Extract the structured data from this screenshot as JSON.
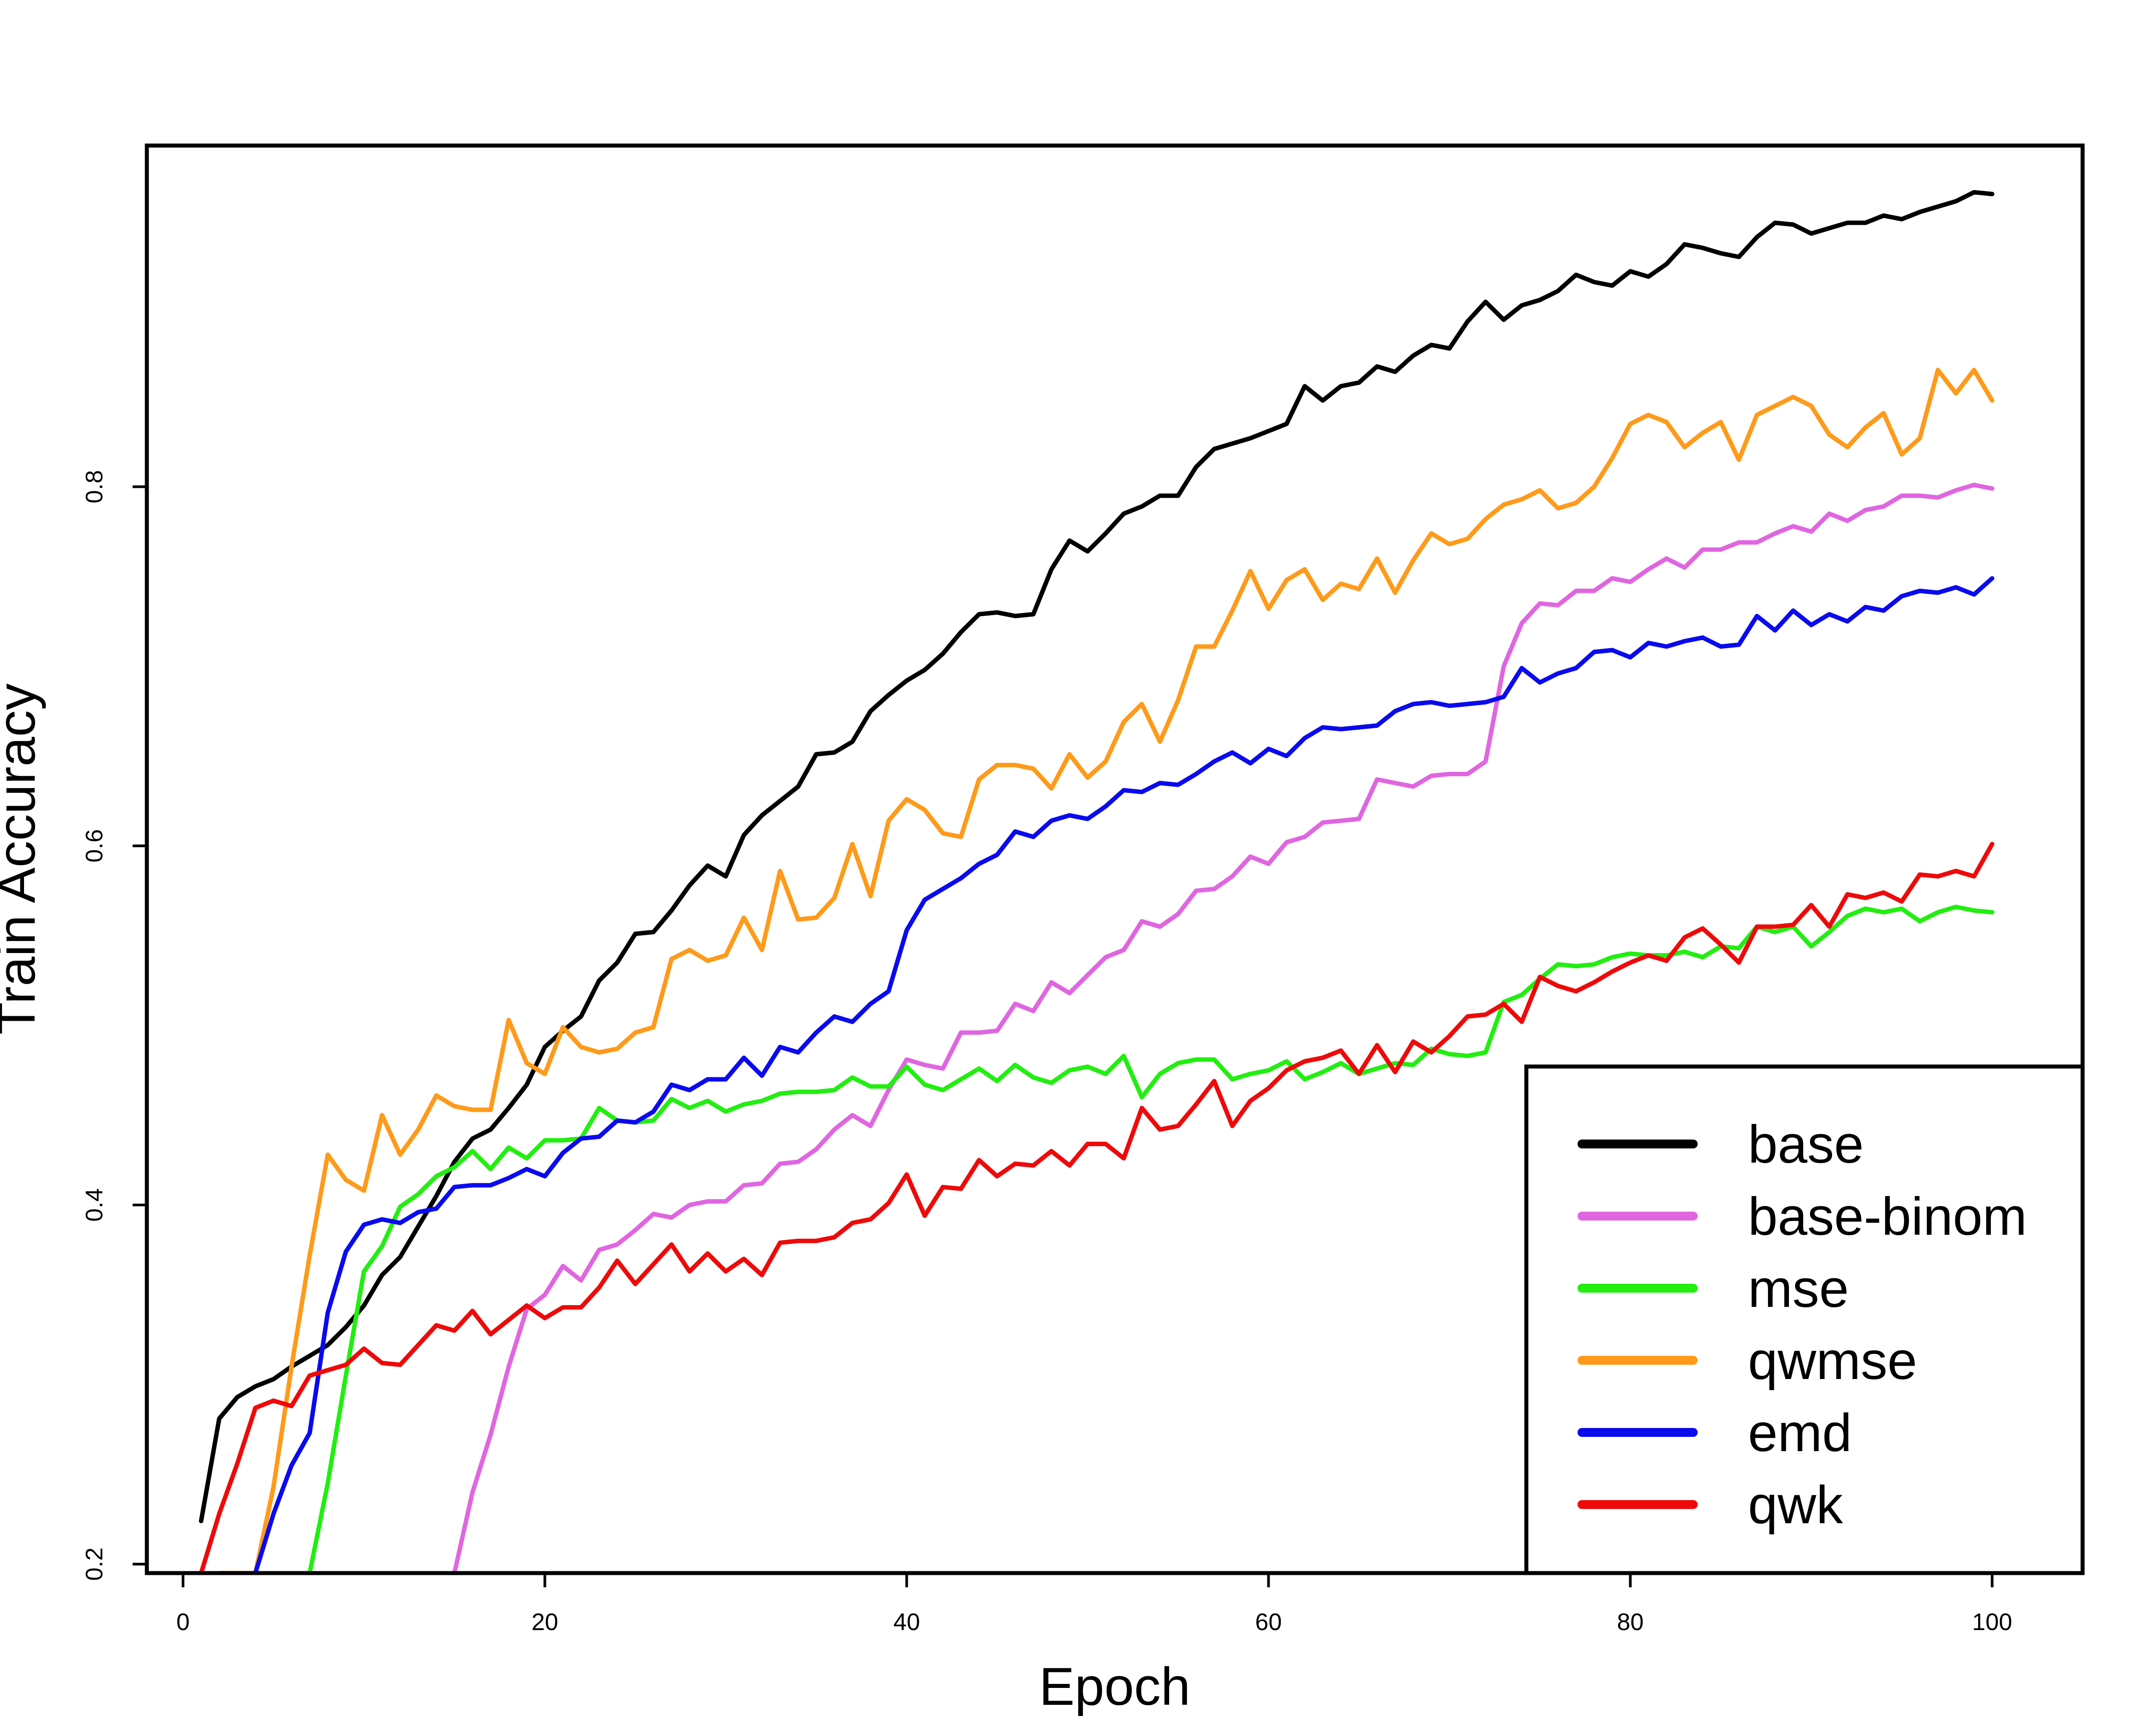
{
  "chart_data": {
    "type": "line",
    "title": "",
    "xlabel": "Epoch",
    "ylabel": "Train Accuracy",
    "xlim": [
      -2,
      105
    ],
    "ylim": [
      0.195,
      0.99
    ],
    "x_ticks": [
      0,
      20,
      40,
      60,
      80,
      100
    ],
    "y_ticks": [
      0.2,
      0.4,
      0.6,
      0.8
    ],
    "x_tick_labels": [
      "0",
      "20",
      "40",
      "60",
      "80",
      "100"
    ],
    "y_tick_labels": [
      "0.2",
      "0.4",
      "0.6",
      "0.8"
    ],
    "grid": false,
    "legend_position": "bottom-right",
    "series": [
      {
        "name": "base",
        "color": "#000000",
        "x": [
          1,
          2,
          3,
          4,
          5,
          6,
          7,
          8,
          9,
          10,
          11,
          12,
          13,
          14,
          15,
          16,
          17,
          18,
          19,
          20,
          21,
          22,
          23,
          24,
          25,
          26,
          27,
          28,
          29,
          30,
          31,
          32,
          33,
          34,
          35,
          36,
          37,
          38,
          39,
          40,
          41,
          42,
          43,
          44,
          45,
          46,
          47,
          48,
          49,
          50,
          51,
          52,
          53,
          54,
          55,
          56,
          57,
          58,
          59,
          60,
          61,
          62,
          63,
          64,
          65,
          66,
          67,
          68,
          69,
          70,
          71,
          72,
          73,
          74,
          75,
          76,
          77,
          78,
          79,
          80,
          81,
          82,
          83,
          84,
          85,
          86,
          87,
          88,
          89,
          90,
          91,
          92,
          93,
          94,
          95,
          96,
          97,
          98,
          99,
          100
        ],
        "values": [
          0.224,
          0.281,
          0.293,
          0.299,
          0.303,
          0.31,
          0.316,
          0.322,
          0.332,
          0.344,
          0.361,
          0.371,
          0.388,
          0.405,
          0.424,
          0.437,
          0.442,
          0.454,
          0.467,
          0.488,
          0.497,
          0.505,
          0.525,
          0.535,
          0.551,
          0.552,
          0.564,
          0.578,
          0.589,
          0.583,
          0.606,
          0.617,
          0.625,
          0.633,
          0.651,
          0.652,
          0.658,
          0.675,
          0.684,
          0.692,
          0.698,
          0.707,
          0.719,
          0.729,
          0.73,
          0.728,
          0.729,
          0.754,
          0.77,
          0.764,
          0.774,
          0.785,
          0.789,
          0.795,
          0.795,
          0.811,
          0.821,
          0.824,
          0.827,
          0.831,
          0.835,
          0.856,
          0.848,
          0.856,
          0.858,
          0.867,
          0.864,
          0.873,
          0.879,
          0.877,
          0.892,
          0.903,
          0.893,
          0.901,
          0.904,
          0.909,
          0.918,
          0.914,
          0.912,
          0.92,
          0.917,
          0.924,
          0.935,
          0.933,
          0.93,
          0.928,
          0.939,
          0.947,
          0.946,
          0.941,
          0.944,
          0.947,
          0.947,
          0.951,
          0.949,
          0.953,
          0.956,
          0.959,
          0.964,
          0.963
        ]
      },
      {
        "name": "base-binom",
        "color": "#e066e0",
        "x": [
          15,
          16,
          17,
          18,
          19,
          20,
          21,
          22,
          23,
          24,
          25,
          26,
          27,
          28,
          29,
          30,
          31,
          32,
          33,
          34,
          35,
          36,
          37,
          38,
          39,
          40,
          41,
          42,
          43,
          44,
          45,
          46,
          47,
          48,
          49,
          50,
          51,
          52,
          53,
          54,
          55,
          56,
          57,
          58,
          59,
          60,
          61,
          62,
          63,
          64,
          65,
          66,
          67,
          68,
          69,
          70,
          71,
          72,
          73,
          74,
          75,
          76,
          77,
          78,
          79,
          80,
          81,
          82,
          83,
          84,
          85,
          86,
          87,
          88,
          89,
          90,
          91,
          92,
          93,
          94,
          95,
          96,
          97,
          98,
          99,
          100
        ],
        "values": [
          0.195,
          0.24,
          0.272,
          0.31,
          0.342,
          0.35,
          0.366,
          0.358,
          0.375,
          0.378,
          0.386,
          0.395,
          0.393,
          0.4,
          0.402,
          0.402,
          0.411,
          0.412,
          0.423,
          0.424,
          0.431,
          0.442,
          0.45,
          0.444,
          0.464,
          0.481,
          0.478,
          0.476,
          0.496,
          0.496,
          0.497,
          0.512,
          0.508,
          0.524,
          0.518,
          0.528,
          0.538,
          0.542,
          0.558,
          0.555,
          0.562,
          0.575,
          0.576,
          0.583,
          0.594,
          0.59,
          0.602,
          0.605,
          0.613,
          0.614,
          0.615,
          0.637,
          0.635,
          0.633,
          0.639,
          0.64,
          0.64,
          0.647,
          0.7,
          0.724,
          0.735,
          0.734,
          0.742,
          0.742,
          0.749,
          0.747,
          0.754,
          0.76,
          0.755,
          0.765,
          0.765,
          0.769,
          0.769,
          0.774,
          0.778,
          0.775,
          0.785,
          0.781,
          0.787,
          0.789,
          0.795,
          0.795,
          0.794,
          0.798,
          0.801,
          0.799
        ]
      },
      {
        "name": "mse",
        "color": "#22ee11",
        "x": [
          7,
          8,
          9,
          10,
          11,
          12,
          13,
          14,
          15,
          16,
          17,
          18,
          19,
          20,
          21,
          22,
          23,
          24,
          25,
          26,
          27,
          28,
          29,
          30,
          31,
          32,
          33,
          34,
          35,
          36,
          37,
          38,
          39,
          40,
          41,
          42,
          43,
          44,
          45,
          46,
          47,
          48,
          49,
          50,
          51,
          52,
          53,
          54,
          55,
          56,
          57,
          58,
          59,
          60,
          61,
          62,
          63,
          64,
          65,
          66,
          67,
          68,
          69,
          70,
          71,
          72,
          73,
          74,
          75,
          76,
          77,
          78,
          79,
          80,
          81,
          82,
          83,
          84,
          85,
          86,
          87,
          88,
          89,
          90,
          91,
          92,
          93,
          94,
          95,
          96,
          97,
          98,
          99,
          100
        ],
        "values": [
          0.195,
          0.245,
          0.305,
          0.363,
          0.377,
          0.399,
          0.406,
          0.416,
          0.421,
          0.43,
          0.42,
          0.432,
          0.426,
          0.436,
          0.436,
          0.437,
          0.454,
          0.447,
          0.446,
          0.447,
          0.459,
          0.454,
          0.458,
          0.452,
          0.456,
          0.458,
          0.462,
          0.463,
          0.463,
          0.464,
          0.471,
          0.466,
          0.466,
          0.477,
          0.467,
          0.464,
          0.47,
          0.476,
          0.469,
          0.478,
          0.471,
          0.468,
          0.475,
          0.477,
          0.473,
          0.483,
          0.46,
          0.473,
          0.479,
          0.481,
          0.481,
          0.47,
          0.473,
          0.475,
          0.48,
          0.47,
          0.474,
          0.479,
          0.473,
          0.476,
          0.479,
          0.478,
          0.487,
          0.484,
          0.483,
          0.485,
          0.513,
          0.517,
          0.526,
          0.534,
          0.533,
          0.534,
          0.538,
          0.54,
          0.539,
          0.539,
          0.541,
          0.538,
          0.544,
          0.543,
          0.555,
          0.552,
          0.555,
          0.544,
          0.552,
          0.561,
          0.565,
          0.563,
          0.565,
          0.558,
          0.563,
          0.566,
          0.564,
          0.563
        ]
      },
      {
        "name": "qwmse",
        "color": "#ff9a1a",
        "x": [
          2,
          4,
          5,
          6,
          7,
          8,
          9,
          10,
          11,
          12,
          13,
          14,
          15,
          16,
          17,
          18,
          19,
          20,
          21,
          22,
          23,
          24,
          25,
          26,
          27,
          28,
          29,
          30,
          31,
          32,
          33,
          34,
          35,
          36,
          37,
          38,
          39,
          40,
          41,
          42,
          43,
          44,
          45,
          46,
          47,
          48,
          49,
          50,
          51,
          52,
          53,
          54,
          55,
          56,
          57,
          58,
          59,
          60,
          61,
          62,
          63,
          64,
          65,
          66,
          67,
          68,
          69,
          70,
          71,
          72,
          73,
          74,
          75,
          76,
          77,
          78,
          79,
          80,
          81,
          82,
          83,
          84,
          85,
          86,
          87,
          88,
          89,
          90,
          91,
          92,
          93,
          94,
          95,
          96,
          97,
          98,
          99,
          100
        ],
        "values": [
          0.195,
          0.195,
          0.243,
          0.31,
          0.372,
          0.428,
          0.414,
          0.408,
          0.45,
          0.428,
          0.442,
          0.461,
          0.455,
          0.453,
          0.453,
          0.503,
          0.479,
          0.473,
          0.499,
          0.488,
          0.485,
          0.487,
          0.496,
          0.499,
          0.537,
          0.542,
          0.536,
          0.539,
          0.56,
          0.542,
          0.586,
          0.559,
          0.56,
          0.571,
          0.601,
          0.572,
          0.614,
          0.626,
          0.62,
          0.607,
          0.605,
          0.637,
          0.645,
          0.645,
          0.643,
          0.632,
          0.651,
          0.638,
          0.647,
          0.669,
          0.679,
          0.658,
          0.681,
          0.711,
          0.711,
          0.731,
          0.753,
          0.732,
          0.748,
          0.754,
          0.737,
          0.746,
          0.743,
          0.76,
          0.741,
          0.759,
          0.774,
          0.768,
          0.771,
          0.782,
          0.79,
          0.793,
          0.798,
          0.788,
          0.791,
          0.8,
          0.816,
          0.835,
          0.84,
          0.836,
          0.822,
          0.83,
          0.836,
          0.815,
          0.84,
          0.845,
          0.85,
          0.845,
          0.829,
          0.822,
          0.833,
          0.841,
          0.818,
          0.827,
          0.865,
          0.852,
          0.865,
          0.848
        ]
      },
      {
        "name": "emd",
        "color": "#0a0aee",
        "x": [
          4,
          5,
          6,
          7,
          8,
          9,
          10,
          11,
          12,
          13,
          14,
          15,
          16,
          17,
          18,
          19,
          20,
          21,
          22,
          23,
          24,
          25,
          26,
          27,
          28,
          29,
          30,
          31,
          32,
          33,
          34,
          35,
          36,
          37,
          38,
          39,
          40,
          41,
          42,
          43,
          44,
          45,
          46,
          47,
          48,
          49,
          50,
          51,
          52,
          53,
          54,
          55,
          56,
          57,
          58,
          59,
          60,
          61,
          62,
          63,
          64,
          65,
          66,
          67,
          68,
          69,
          70,
          71,
          72,
          73,
          74,
          75,
          76,
          77,
          78,
          79,
          80,
          81,
          82,
          83,
          84,
          85,
          86,
          87,
          88,
          89,
          90,
          91,
          92,
          93,
          94,
          95,
          96,
          97,
          98,
          99,
          100
        ],
        "values": [
          0.195,
          0.228,
          0.255,
          0.273,
          0.34,
          0.374,
          0.389,
          0.392,
          0.39,
          0.396,
          0.398,
          0.41,
          0.411,
          0.411,
          0.415,
          0.42,
          0.416,
          0.429,
          0.437,
          0.438,
          0.447,
          0.446,
          0.452,
          0.467,
          0.464,
          0.47,
          0.47,
          0.482,
          0.472,
          0.488,
          0.485,
          0.496,
          0.505,
          0.502,
          0.512,
          0.519,
          0.553,
          0.57,
          0.576,
          0.582,
          0.59,
          0.595,
          0.608,
          0.605,
          0.614,
          0.617,
          0.615,
          0.622,
          0.631,
          0.63,
          0.635,
          0.634,
          0.64,
          0.647,
          0.652,
          0.646,
          0.654,
          0.65,
          0.66,
          0.666,
          0.665,
          0.666,
          0.667,
          0.675,
          0.679,
          0.68,
          0.678,
          0.679,
          0.68,
          0.683,
          0.699,
          0.691,
          0.696,
          0.699,
          0.708,
          0.709,
          0.705,
          0.713,
          0.711,
          0.714,
          0.716,
          0.711,
          0.712,
          0.728,
          0.72,
          0.731,
          0.723,
          0.729,
          0.725,
          0.733,
          0.731,
          0.739,
          0.742,
          0.741,
          0.744,
          0.74,
          0.749
        ]
      },
      {
        "name": "qwk",
        "color": "#ee0a0a",
        "x": [
          1,
          2,
          3,
          4,
          5,
          6,
          7,
          8,
          9,
          10,
          11,
          12,
          13,
          14,
          15,
          16,
          17,
          18,
          19,
          20,
          21,
          22,
          23,
          24,
          25,
          26,
          27,
          28,
          29,
          30,
          31,
          32,
          33,
          34,
          35,
          36,
          37,
          38,
          39,
          40,
          41,
          42,
          43,
          44,
          45,
          46,
          47,
          48,
          49,
          50,
          51,
          52,
          53,
          54,
          55,
          56,
          57,
          58,
          59,
          60,
          61,
          62,
          63,
          64,
          65,
          66,
          67,
          68,
          69,
          70,
          71,
          72,
          73,
          74,
          75,
          76,
          77,
          78,
          79,
          80,
          81,
          82,
          83,
          84,
          85,
          86,
          87,
          88,
          89,
          90,
          91,
          92,
          93,
          94,
          95,
          96,
          97,
          98,
          99,
          100
        ],
        "values": [
          0.195,
          0.228,
          0.256,
          0.287,
          0.291,
          0.288,
          0.305,
          0.308,
          0.311,
          0.32,
          0.312,
          0.311,
          0.322,
          0.333,
          0.33,
          0.341,
          0.328,
          0.336,
          0.344,
          0.337,
          0.343,
          0.343,
          0.354,
          0.369,
          0.356,
          0.367,
          0.378,
          0.363,
          0.373,
          0.363,
          0.37,
          0.361,
          0.379,
          0.38,
          0.38,
          0.382,
          0.39,
          0.392,
          0.401,
          0.417,
          0.394,
          0.41,
          0.409,
          0.425,
          0.416,
          0.423,
          0.422,
          0.43,
          0.422,
          0.434,
          0.434,
          0.426,
          0.454,
          0.442,
          0.444,
          0.456,
          0.469,
          0.444,
          0.458,
          0.465,
          0.475,
          0.48,
          0.482,
          0.486,
          0.473,
          0.489,
          0.474,
          0.491,
          0.485,
          0.494,
          0.505,
          0.506,
          0.512,
          0.502,
          0.527,
          0.522,
          0.519,
          0.524,
          0.53,
          0.535,
          0.539,
          0.536,
          0.549,
          0.554,
          0.545,
          0.535,
          0.555,
          0.555,
          0.556,
          0.567,
          0.555,
          0.573,
          0.571,
          0.574,
          0.569,
          0.584,
          0.583,
          0.586,
          0.583,
          0.601
        ]
      }
    ]
  }
}
